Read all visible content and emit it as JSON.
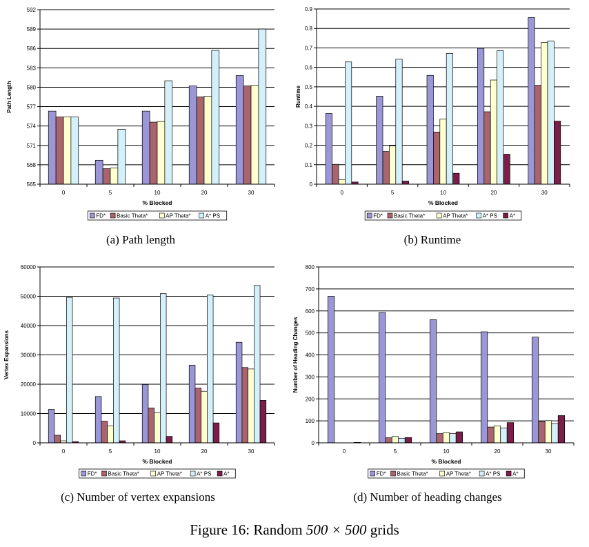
{
  "figure": {
    "label": "Figure 16:",
    "title_prefix": "Random",
    "title_dims": "500 × 500",
    "title_suffix": "grids"
  },
  "chart_data": [
    {
      "type": "bar",
      "caption": "(a) Path length",
      "categories": [
        "0",
        "5",
        "10",
        "20",
        "30"
      ],
      "xlabel": "% Blocked",
      "ylabel": "Path Length",
      "ylim": [
        565,
        592
      ],
      "yticks": [
        "565",
        "568",
        "571",
        "574",
        "577",
        "580",
        "583",
        "586",
        "589",
        "592"
      ],
      "grid": true,
      "legend_position": "bottom",
      "series": [
        {
          "name": "FD*",
          "color": "#9B97D6",
          "values": [
            576.3,
            568.7,
            576.3,
            580.2,
            581.8
          ]
        },
        {
          "name": "Basic Theta*",
          "color": "#A8656E",
          "values": [
            575.4,
            567.4,
            574.6,
            578.5,
            580.2
          ]
        },
        {
          "name": "AP Theta*",
          "color": "#FFFFCF",
          "values": [
            575.4,
            567.5,
            574.7,
            578.6,
            580.3
          ]
        },
        {
          "name": "A* PS",
          "color": "#D4F0FA",
          "values": [
            575.4,
            573.5,
            581.0,
            585.7,
            589.0
          ]
        }
      ]
    },
    {
      "type": "bar",
      "caption": "(b) Runtime",
      "categories": [
        "0",
        "5",
        "10",
        "20",
        "30"
      ],
      "xlabel": "% Blocked",
      "ylabel": "Runtime",
      "ylim": [
        0,
        0.9
      ],
      "yticks": [
        "0",
        "0.1",
        "0.2",
        "0.3",
        "0.4",
        "0.5",
        "0.6",
        "0.7",
        "0.8",
        "0.9"
      ],
      "grid": true,
      "legend_position": "bottom",
      "series": [
        {
          "name": "FD*",
          "color": "#9B97D6",
          "values": [
            0.363,
            0.452,
            0.559,
            0.698,
            0.856
          ]
        },
        {
          "name": "Basic Theta*",
          "color": "#A8656E",
          "values": [
            0.102,
            0.168,
            0.268,
            0.372,
            0.508
          ]
        },
        {
          "name": "AP Theta*",
          "color": "#FFFFCF",
          "values": [
            0.024,
            0.196,
            0.334,
            0.535,
            0.728
          ]
        },
        {
          "name": "A* PS",
          "color": "#D4F0FA",
          "values": [
            0.628,
            0.642,
            0.672,
            0.686,
            0.736
          ]
        },
        {
          "name": "A*",
          "color": "#7A1F4A",
          "values": [
            0.011,
            0.016,
            0.056,
            0.154,
            0.324
          ]
        }
      ]
    },
    {
      "type": "bar",
      "caption": "(c) Number of vertex expansions",
      "categories": [
        "0",
        "5",
        "10",
        "20",
        "30"
      ],
      "xlabel": "% Blocked",
      "ylabel": "Vertex Expansions",
      "ylim": [
        0,
        60000
      ],
      "yticks": [
        "0",
        "10000",
        "20000",
        "30000",
        "40000",
        "50000",
        "60000"
      ],
      "grid": true,
      "legend_position": "bottom",
      "series": [
        {
          "name": "FD*",
          "color": "#9B97D6",
          "values": [
            11400,
            15800,
            19900,
            26500,
            34300
          ]
        },
        {
          "name": "Basic Theta*",
          "color": "#A8656E",
          "values": [
            2600,
            7400,
            11900,
            18700,
            25700
          ]
        },
        {
          "name": "AP Theta*",
          "color": "#FFFFCF",
          "values": [
            700,
            5800,
            10300,
            17600,
            25200
          ]
        },
        {
          "name": "A* PS",
          "color": "#D4F0FA",
          "values": [
            49600,
            49400,
            50900,
            50400,
            53700
          ]
        },
        {
          "name": "A*",
          "color": "#7A1F4A",
          "values": [
            400,
            700,
            2200,
            6800,
            14500
          ]
        }
      ]
    },
    {
      "type": "bar",
      "caption": "(d) Number of heading changes",
      "categories": [
        "0",
        "5",
        "10",
        "20",
        "30"
      ],
      "xlabel": "% Blocked",
      "ylabel": "Number of Heading Changes",
      "ylim": [
        0,
        800
      ],
      "yticks": [
        "0",
        "100",
        "200",
        "300",
        "400",
        "500",
        "600",
        "700",
        "800"
      ],
      "grid": true,
      "legend_position": "bottom",
      "series": [
        {
          "name": "FD*",
          "color": "#9B97D6",
          "values": [
            667,
            593,
            560,
            505,
            481
          ]
        },
        {
          "name": "Basic Theta*",
          "color": "#A8656E",
          "values": [
            0,
            23,
            42,
            72,
            97
          ]
        },
        {
          "name": "AP Theta*",
          "color": "#FFFFCF",
          "values": [
            0,
            29,
            46,
            77,
            101
          ]
        },
        {
          "name": "A* PS",
          "color": "#D4F0FA",
          "values": [
            0,
            21,
            43,
            68,
            88
          ]
        },
        {
          "name": "A*",
          "color": "#7A1F4A",
          "values": [
            2,
            24,
            50,
            92,
            124
          ]
        }
      ]
    }
  ]
}
